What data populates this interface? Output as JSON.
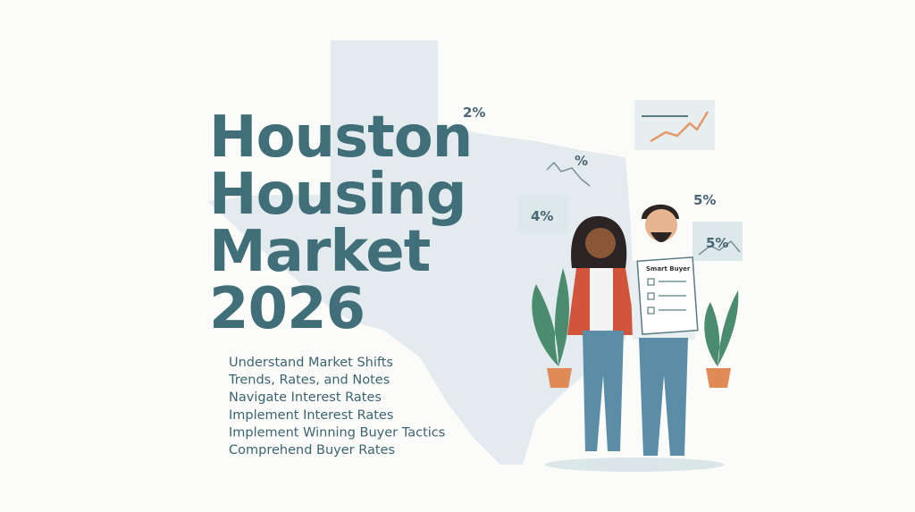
{
  "title": {
    "lines": [
      "Houston",
      "Housing",
      "Market",
      "2026"
    ]
  },
  "bullets": [
    "Understand Market Shifts",
    "Trends, Rates, and Notes",
    "Navigate Interest Rates",
    "Implement Interest Rates",
    "Implement Winning Buyer Tactics",
    "Comprehend Buyer Rates"
  ],
  "badges": [
    "2%",
    "%",
    "4%",
    "5%",
    "5%"
  ],
  "clipboard": {
    "title": "Smart Buyer"
  }
}
